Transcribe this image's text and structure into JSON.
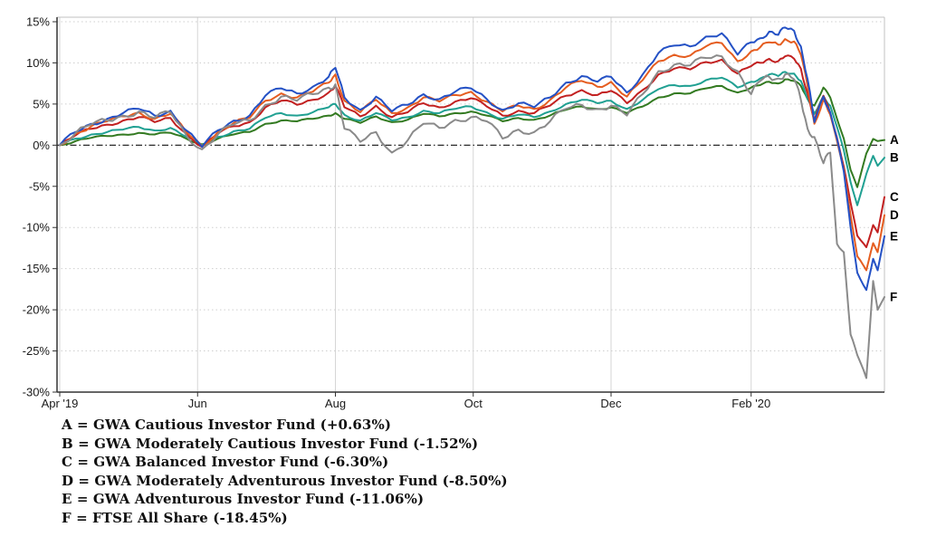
{
  "chart": {
    "y_ticks": [
      "15%",
      "10%",
      "5%",
      "0%",
      "-5%",
      "-10%",
      "-15%",
      "-20%",
      "-25%",
      "-30%"
    ],
    "y_tick_values": [
      15,
      10,
      5,
      0,
      -5,
      -10,
      -15,
      -20,
      -25,
      -30
    ],
    "x_ticks": [
      {
        "label": "Apr '19",
        "day": 0
      },
      {
        "label": "Jun",
        "day": 61
      },
      {
        "label": "Aug",
        "day": 122
      },
      {
        "label": "Oct",
        "day": 183
      },
      {
        "label": "Dec",
        "day": 244
      },
      {
        "label": "Feb '20",
        "day": 306
      }
    ]
  },
  "chart_data": {
    "type": "line",
    "title": "",
    "xlabel": "",
    "ylabel": "",
    "ylim": [
      -30,
      15
    ],
    "x_unit": "days since Apr 2019",
    "total_days": 365,
    "grid": true,
    "zero_line": true,
    "legend_position": "bottom-left",
    "x_days": [
      0,
      7,
      14,
      21,
      28,
      35,
      42,
      49,
      56,
      63,
      70,
      77,
      84,
      91,
      98,
      105,
      112,
      119,
      122,
      126,
      133,
      140,
      147,
      154,
      161,
      168,
      175,
      182,
      189,
      196,
      203,
      210,
      217,
      224,
      231,
      238,
      244,
      251,
      258,
      265,
      272,
      279,
      286,
      293,
      300,
      306,
      310,
      314,
      318,
      321,
      325,
      328,
      331,
      334,
      338,
      341,
      344,
      347,
      350,
      353,
      357,
      360,
      362,
      365
    ],
    "series": [
      {
        "letter": "A",
        "name": "GWA Cautious Investor Fund",
        "final_return_pct": 0.63,
        "color": "#337a21",
        "values": [
          0,
          0.5,
          0.9,
          1.1,
          1.3,
          1.5,
          1.3,
          1.5,
          0.8,
          0.1,
          0.8,
          1.3,
          1.6,
          2.6,
          3.0,
          2.9,
          3.2,
          3.6,
          3.9,
          3.2,
          2.7,
          3.5,
          2.8,
          3.1,
          3.8,
          3.5,
          3.9,
          4.1,
          3.6,
          2.9,
          3.3,
          3.1,
          3.6,
          4.3,
          4.7,
          4.4,
          4.6,
          3.9,
          4.7,
          5.8,
          6.3,
          6.3,
          6.9,
          7.2,
          6.4,
          7.0,
          7.3,
          7.7,
          7.5,
          8.0,
          7.8,
          7.2,
          5.6,
          4.8,
          7.0,
          5.8,
          3.2,
          0.8,
          -3.0,
          -5.1,
          -1.0,
          0.76,
          0.5,
          0.63
        ]
      },
      {
        "letter": "B",
        "name": "GWA Moderately Cautious Investor Fund",
        "final_return_pct": -1.52,
        "color": "#20a092",
        "values": [
          0,
          0.8,
          1.3,
          1.6,
          1.9,
          2.2,
          1.8,
          2.1,
          1.0,
          0.0,
          1.0,
          1.7,
          2.0,
          3.3,
          3.9,
          3.6,
          4.0,
          4.6,
          5.0,
          3.7,
          3.0,
          3.9,
          3.0,
          3.4,
          4.2,
          3.9,
          4.4,
          4.7,
          4.0,
          3.2,
          3.7,
          3.4,
          4.1,
          5.0,
          5.5,
          5.1,
          5.4,
          4.4,
          5.5,
          6.8,
          7.3,
          7.2,
          7.9,
          8.2,
          7.0,
          7.7,
          8.1,
          8.6,
          8.4,
          8.9,
          8.7,
          7.8,
          5.6,
          3.8,
          6.0,
          4.8,
          2.2,
          -0.6,
          -4.5,
          -7.3,
          -3.5,
          -1.3,
          -2.5,
          -1.52
        ]
      },
      {
        "letter": "C",
        "name": "GWA Balanced Investor Fund",
        "final_return_pct": -6.3,
        "color": "#c22020",
        "values": [
          0,
          1.2,
          2.0,
          2.5,
          3.0,
          3.4,
          2.8,
          3.3,
          1.4,
          -0.2,
          1.4,
          2.3,
          2.8,
          4.6,
          5.4,
          4.9,
          5.5,
          6.4,
          7.2,
          4.6,
          3.5,
          4.8,
          3.4,
          4.0,
          5.1,
          4.6,
          5.3,
          5.7,
          4.7,
          3.6,
          4.2,
          3.9,
          4.8,
          6.0,
          6.7,
          6.1,
          6.6,
          5.1,
          6.7,
          8.6,
          9.3,
          9.2,
          10.1,
          10.4,
          8.7,
          9.6,
          10.0,
          10.5,
          10.2,
          10.8,
          10.5,
          9.3,
          6.3,
          3.0,
          6.0,
          3.9,
          0.9,
          -2.6,
          -7.0,
          -11.0,
          -12.4,
          -9.7,
          -10.6,
          -6.3
        ]
      },
      {
        "letter": "D",
        "name": "GWA Moderately Adventurous Investor Fund",
        "final_return_pct": -8.5,
        "color": "#e55d20",
        "values": [
          0,
          1.4,
          2.3,
          2.9,
          3.5,
          4.0,
          3.2,
          3.8,
          1.6,
          -0.1,
          1.6,
          2.7,
          3.3,
          5.4,
          6.3,
          5.8,
          6.5,
          7.6,
          8.6,
          5.4,
          4.0,
          5.5,
          3.9,
          4.6,
          5.8,
          5.3,
          6.1,
          6.5,
          5.3,
          4.1,
          4.8,
          4.4,
          5.5,
          7.0,
          7.8,
          7.1,
          7.7,
          5.9,
          7.9,
          10.2,
          11.0,
          10.9,
          12.0,
          12.4,
          10.2,
          11.4,
          11.9,
          12.5,
          12.2,
          12.9,
          12.6,
          11.0,
          7.2,
          2.6,
          5.6,
          3.7,
          0.5,
          -3.0,
          -8.5,
          -13.5,
          -15.2,
          -11.9,
          -13.0,
          -8.5
        ]
      },
      {
        "letter": "E",
        "name": "GWA Adventurous Investor Fund",
        "final_return_pct": -11.06,
        "color": "#2451c5",
        "values": [
          0,
          1.6,
          2.6,
          3.2,
          3.9,
          4.4,
          3.6,
          4.2,
          1.8,
          -0.2,
          1.8,
          3.0,
          3.6,
          6.0,
          6.9,
          6.3,
          7.1,
          8.3,
          9.4,
          5.8,
          4.3,
          5.9,
          4.1,
          4.9,
          6.2,
          5.6,
          6.5,
          6.9,
          5.6,
          4.3,
          5.1,
          4.6,
          5.8,
          7.6,
          8.4,
          7.7,
          8.3,
          6.4,
          8.6,
          11.2,
          12.1,
          12.0,
          13.2,
          13.6,
          11.0,
          12.5,
          13.0,
          13.8,
          13.4,
          14.3,
          13.9,
          12.0,
          8.0,
          2.8,
          5.9,
          4.0,
          0.8,
          -3.2,
          -10.0,
          -15.5,
          -17.6,
          -13.8,
          -15.2,
          -11.06
        ]
      },
      {
        "letter": "F",
        "name": "FTSE All Share",
        "final_return_pct": -18.45,
        "color": "#8a8a8a",
        "values": [
          0,
          1.5,
          2.5,
          3.0,
          3.6,
          4.1,
          3.3,
          4.0,
          1.2,
          -0.5,
          1.3,
          2.5,
          3.0,
          4.9,
          5.9,
          5.4,
          6.2,
          7.0,
          7.4,
          2.0,
          0.4,
          1.6,
          -0.9,
          0.6,
          2.6,
          2.1,
          3.1,
          3.4,
          2.9,
          0.8,
          1.9,
          1.6,
          2.9,
          4.4,
          4.9,
          4.4,
          4.8,
          3.6,
          6.2,
          9.0,
          9.8,
          9.7,
          10.6,
          10.8,
          9.0,
          6.2,
          7.8,
          8.3,
          8.1,
          8.6,
          8.0,
          5.5,
          2.0,
          1.0,
          -2.2,
          -0.9,
          -12.0,
          -13.0,
          -23.0,
          -25.5,
          -28.3,
          -16.5,
          -20.0,
          -18.45
        ]
      }
    ]
  },
  "legend": {
    "items": [
      "A = GWA Cautious Investor Fund (+0.63%)",
      "B = GWA Moderately Cautious Investor Fund (-1.52%)",
      "C = GWA Balanced Investor Fund (-6.30%)",
      "D = GWA Moderately Adventurous Investor Fund (-8.50%)",
      "E = GWA Adventurous Investor Fund (-11.06%)",
      "F = FTSE All Share (-18.45%)"
    ]
  },
  "colors": {
    "background": "#ffffff",
    "grid": "#cfcfcf",
    "vgrid": "#d6d6d6",
    "axis": "#333333",
    "border_light": "#c0c0c0",
    "zero_line": "#111111",
    "text": "#1a1a1a",
    "letter_label": "#000000"
  }
}
